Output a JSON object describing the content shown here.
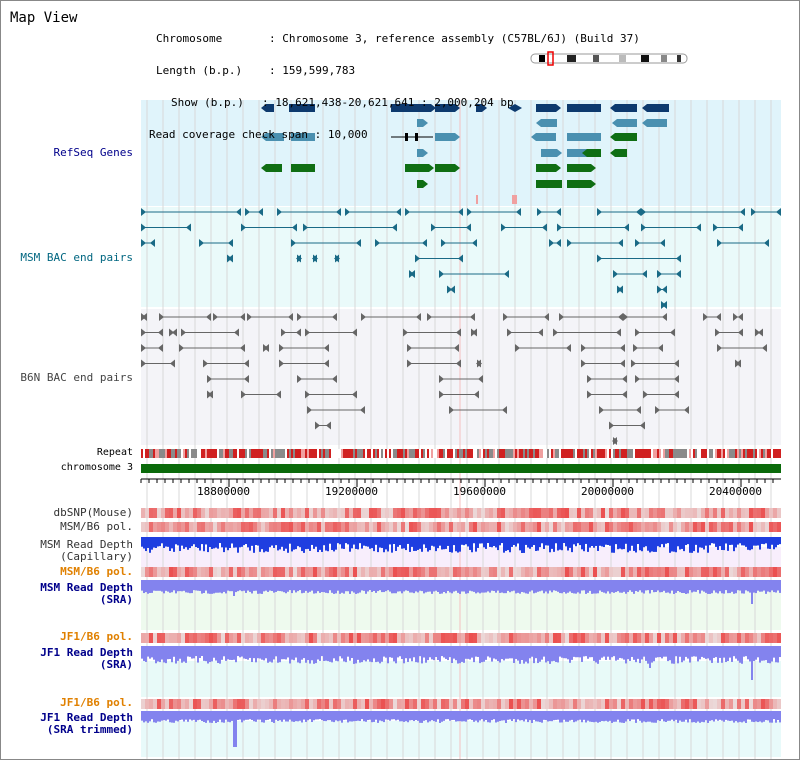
{
  "title": "Map View",
  "info": {
    "chromosome_key": "Chromosome",
    "chromosome_value": "Chromosome 3, reference assembly (C57BL/6J) (Build 37)",
    "length_key": "Length (b.p.)",
    "length_value": "159,599,783",
    "show_key": "Show (b.p.)",
    "show_value": "18,621,438-20,621,641 : 2,000,204 bp",
    "coverage_key": "Read coverage check span",
    "coverage_value": "10,000"
  },
  "tracks": {
    "refseq": "RefSeq Genes",
    "msm_bac": "MSM BAC end pairs",
    "b6n_bac": "B6N BAC end pairs",
    "repeat": "Repeat",
    "chromosome": "chromosome 3",
    "dbsnp": "dbSNP(Mouse)",
    "msm_pol": "MSM/B6 pol.",
    "msm_depth_cap_1": "MSM Read Depth",
    "msm_depth_cap_2": "(Capillary)",
    "msm_pol_2": "MSM/B6 pol.",
    "msm_depth_sra_1": "MSM Read Depth",
    "msm_depth_sra_2": "(SRA)",
    "jf1_pol": "JF1/B6 pol.",
    "jf1_depth_sra_1": "JF1 Read Depth",
    "jf1_depth_sra_2": "(SRA)",
    "jf1_pol_2": "JF1/B6 pol.",
    "jf1_depth_trim_1": "JF1 Read Depth",
    "jf1_depth_trim_2": "(SRA trimmed)"
  },
  "axis": {
    "ticks": [
      "18800000",
      "19200000",
      "19600000",
      "20000000",
      "20400000"
    ]
  },
  "colors": {
    "refseq_bg": "#e0f4fb",
    "msm_bac_bg": "#eafafa",
    "b6n_bg": "#f4f4f8",
    "gene_dark": "#0d3a6e",
    "gene_mid": "#4a90b0",
    "gene_green": "#0f6e13",
    "bac_teal": "#1a6a86",
    "bac_gray": "#666666",
    "chromosome": "#0a6a0a",
    "pol_red": "#e84444",
    "depth_blue": "#1f3ee0",
    "depth_light": "#8383ee",
    "label_blue": "#00008b",
    "label_orange": "#e08000",
    "label_teal": "#006680"
  }
}
